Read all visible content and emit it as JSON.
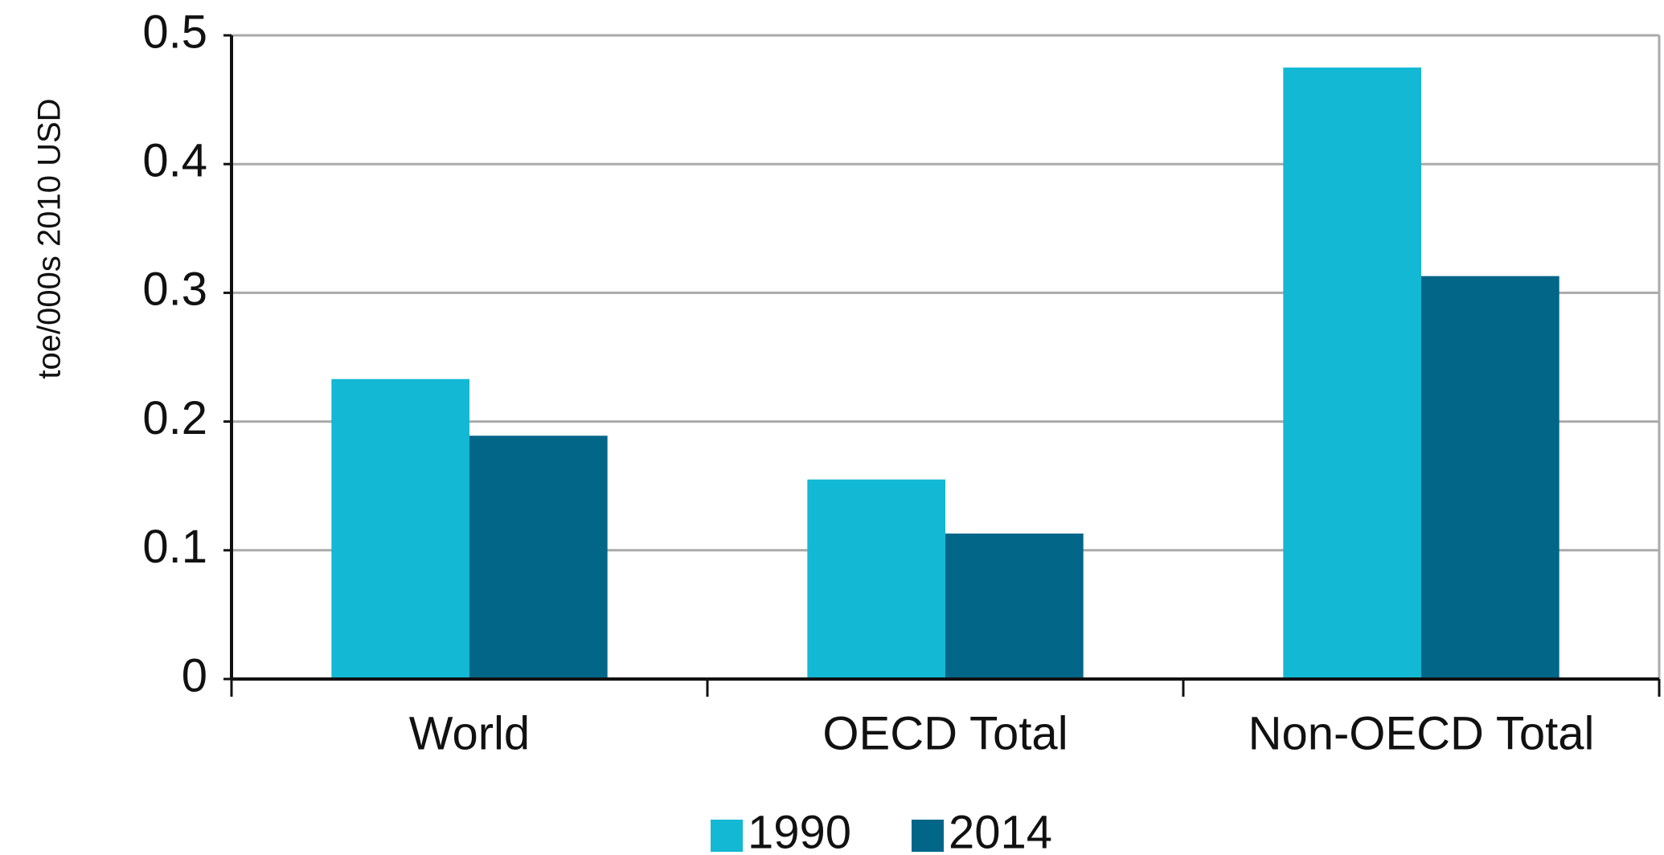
{
  "chart_data": {
    "type": "bar",
    "y_label": "toe/000s 2010 USD",
    "categories": [
      "World",
      "OECD Total",
      "Non-OECD Total"
    ],
    "series": [
      {
        "name": "1990",
        "color": "#12b8d4",
        "values": [
          0.233,
          0.155,
          0.475
        ]
      },
      {
        "name": "2014",
        "color": "#026689",
        "values": [
          0.189,
          0.113,
          0.313
        ]
      }
    ],
    "ylim": [
      0,
      0.5
    ],
    "yticks": [
      0,
      0.1,
      0.2,
      0.3,
      0.4,
      0.5
    ],
    "grid": true,
    "legend": "bottom"
  }
}
